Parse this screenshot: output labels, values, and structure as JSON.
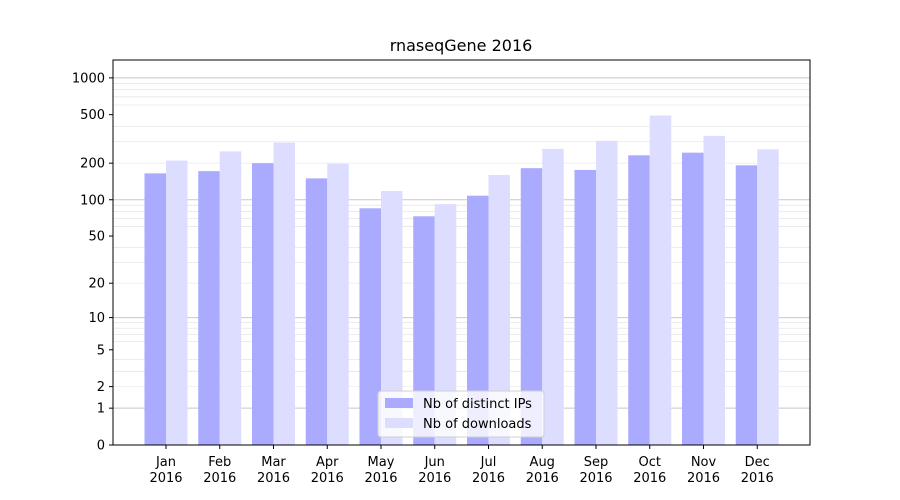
{
  "chart_data": {
    "type": "bar",
    "title": "rnaseqGene 2016",
    "categories": [
      "Jan",
      "Feb",
      "Mar",
      "Apr",
      "May",
      "Jun",
      "Jul",
      "Aug",
      "Sep",
      "Oct",
      "Nov",
      "Dec"
    ],
    "category_sublabel": "2016",
    "series": [
      {
        "name": "Nb of distinct IPs",
        "color": "#aaaaff",
        "values": [
          165,
          172,
          200,
          150,
          85,
          73,
          108,
          182,
          176,
          232,
          244,
          192
        ]
      },
      {
        "name": "Nb of downloads",
        "color": "#ddddff",
        "values": [
          210,
          250,
          295,
          198,
          118,
          92,
          160,
          262,
          305,
          492,
          335,
          260
        ]
      }
    ],
    "y_scale": "log1p",
    "ylim": [
      0,
      1400
    ],
    "y_ticks": [
      0,
      1,
      2,
      5,
      10,
      20,
      50,
      100,
      200,
      500,
      1000
    ],
    "grid": true,
    "legend_position": "lower center"
  }
}
